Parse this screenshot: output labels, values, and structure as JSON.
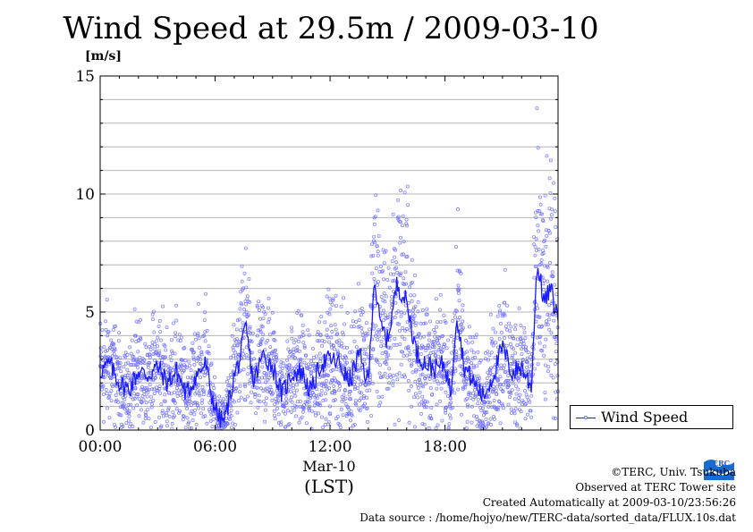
{
  "chart_data": {
    "type": "scatter",
    "title": "Wind Speed at 29.5m / 2009-03-10",
    "ylabel": "[m/s]",
    "xlabel_date": "Mar-10",
    "xlabel_unit": "(LST)",
    "x_ticks": [
      "00:00",
      "06:00",
      "12:00",
      "18:00"
    ],
    "y_ticks": [
      "0",
      "5",
      "10",
      "15"
    ],
    "xlim": [
      0,
      23.9
    ],
    "ylim": [
      0,
      15
    ],
    "grid": true,
    "legend_position": "right",
    "series": [
      {
        "name": "Wind Speed",
        "color": "#1a1aff",
        "marker_color": "#7070ff",
        "x": [
          0,
          0.5,
          1,
          1.5,
          2,
          2.5,
          3,
          3.5,
          4,
          4.5,
          5,
          5.5,
          5.8,
          6.2,
          6.5,
          7,
          7.3,
          7.6,
          8,
          8.5,
          9,
          9.5,
          10,
          10.5,
          11,
          11.5,
          12,
          12.5,
          13,
          13.5,
          14,
          14.3,
          14.6,
          15,
          15.5,
          16,
          16.5,
          17,
          17.5,
          18,
          18.3,
          18.6,
          19,
          19.5,
          20,
          20.5,
          21,
          21.5,
          22,
          22.5,
          22.8,
          23.2,
          23.5,
          23.9
        ],
        "y": [
          2.5,
          2.8,
          2.0,
          1.7,
          2.5,
          2.3,
          2.7,
          2.0,
          2.5,
          1.5,
          2.3,
          2.8,
          1.5,
          0.5,
          0.4,
          2.3,
          3.0,
          4.4,
          2.0,
          3.2,
          2.7,
          1.5,
          2.4,
          2.5,
          1.6,
          2.8,
          3.0,
          2.8,
          2.0,
          3.2,
          2.0,
          6.5,
          4.5,
          3.8,
          6.2,
          5.4,
          3.3,
          2.8,
          2.6,
          2.8,
          1.5,
          5.0,
          2.7,
          2.0,
          1.4,
          2.3,
          3.5,
          2.4,
          2.7,
          1.8,
          7.0,
          5.4,
          6.0,
          4.7
        ]
      }
    ]
  },
  "legend": {
    "label": "Wind Speed"
  },
  "credits": {
    "copyright": "©TERC, Univ. Tsukuba",
    "observed": "Observed at TERC Tower site",
    "created": "Created Automatically at 2009-03-10/23:56:26",
    "source": "Data source : /home/hojyo/new/TERC-data/sorted_data/FLUX.10s.dat"
  },
  "logo": {
    "text": "TERC",
    "color": "#1a6ad0"
  }
}
